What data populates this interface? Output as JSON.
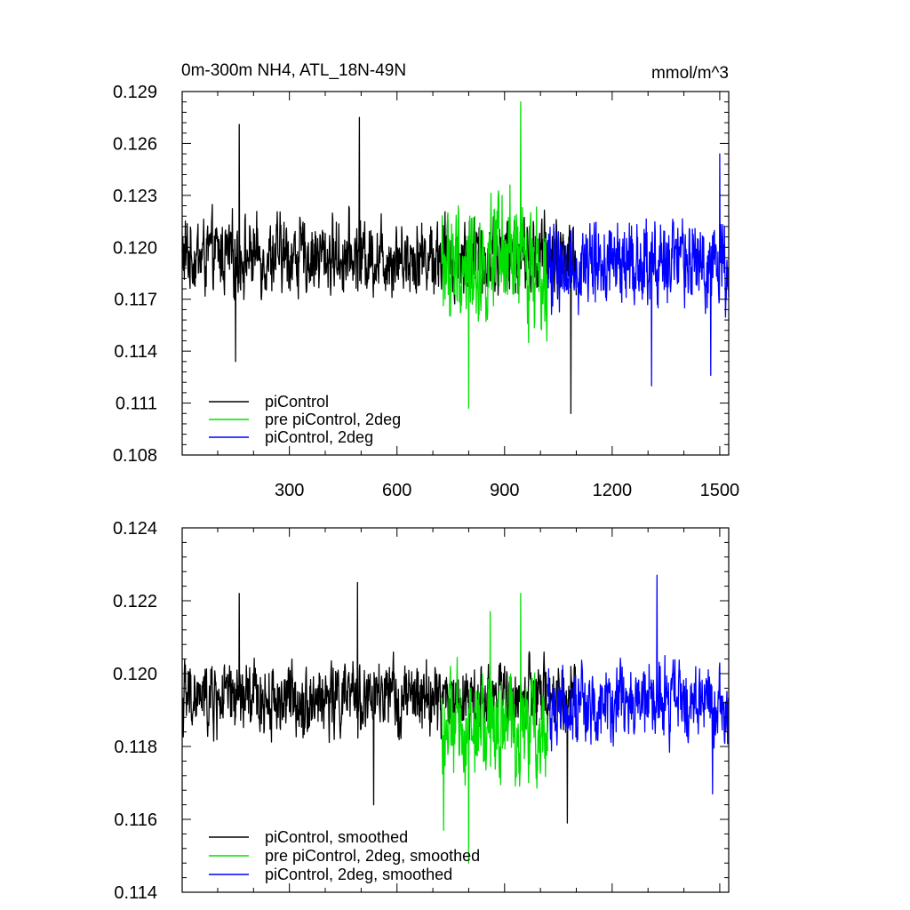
{
  "chart_data": [
    {
      "type": "line",
      "title": "0m-300m NH4, ATL_18N-49N",
      "units": "mmol/m^3",
      "xlim": [
        1,
        1525
      ],
      "ylim": [
        0.108,
        0.129
      ],
      "xticks": [
        300,
        600,
        900,
        1200,
        1500
      ],
      "xtick_labels": [
        "300",
        "600",
        "900",
        "1200",
        "1500"
      ],
      "yticks": [
        0.108,
        0.111,
        0.114,
        0.117,
        0.12,
        0.123,
        0.126,
        0.129
      ],
      "ytick_labels": [
        "0.108",
        "0.111",
        "0.114",
        "0.117",
        "0.120",
        "0.123",
        "0.126",
        "0.129"
      ],
      "grid": false,
      "legend_position": "bottom-left",
      "series": [
        {
          "name": "piControl",
          "color": "#000000",
          "x_range": [
            1,
            1100
          ],
          "mean": 0.1195,
          "amplitude": 0.0022,
          "noise": 0.0015,
          "peaks": [
            [
              150,
              0.1134
            ],
            [
              160,
              0.1271
            ],
            [
              495,
              0.1275
            ],
            [
              1085,
              0.1104
            ]
          ]
        },
        {
          "name": "pre piControl, 2deg",
          "color": "#00e000",
          "x_range": [
            725,
            1020
          ],
          "mean": 0.119,
          "amplitude": 0.0035,
          "noise": 0.0022,
          "peaks": [
            [
              800,
              0.1107
            ],
            [
              945,
              0.1284
            ],
            [
              915,
              0.1236
            ]
          ]
        },
        {
          "name": "piControl, 2deg",
          "color": "#0000ff",
          "x_range": [
            1020,
            1525
          ],
          "mean": 0.119,
          "amplitude": 0.0025,
          "noise": 0.0018,
          "peaks": [
            [
              1310,
              0.112
            ],
            [
              1475,
              0.1126
            ],
            [
              1500,
              0.1254
            ]
          ]
        }
      ]
    },
    {
      "type": "line",
      "xlim": [
        1,
        1525
      ],
      "ylim": [
        0.114,
        0.124
      ],
      "xticks": [
        300,
        600,
        900,
        1200,
        1500
      ],
      "yticks": [
        0.114,
        0.116,
        0.118,
        0.12,
        0.122,
        0.124
      ],
      "ytick_labels": [
        "0.114",
        "0.116",
        "0.118",
        "0.120",
        "0.122",
        "0.124"
      ],
      "grid": false,
      "legend_position": "bottom-left",
      "series": [
        {
          "name": "piControl, smoothed",
          "color": "#000000",
          "x_range": [
            1,
            1100
          ],
          "mean": 0.1193,
          "amplitude": 0.001,
          "noise": 0.0007,
          "peaks": [
            [
              160,
              0.1222
            ],
            [
              490,
              0.1225
            ],
            [
              1075,
              0.1159
            ],
            [
              535,
              0.1164
            ]
          ]
        },
        {
          "name": "pre piControl, 2deg, smoothed",
          "color": "#00e000",
          "x_range": [
            725,
            1020
          ],
          "mean": 0.1185,
          "amplitude": 0.0015,
          "noise": 0.0009,
          "peaks": [
            [
              730,
              0.1157
            ],
            [
              800,
              0.1148
            ],
            [
              945,
              0.1222
            ],
            [
              860,
              0.1217
            ]
          ]
        },
        {
          "name": "piControl, 2deg, smoothed",
          "color": "#0000ff",
          "x_range": [
            1020,
            1525
          ],
          "mean": 0.1192,
          "amplitude": 0.0011,
          "noise": 0.0007,
          "peaks": [
            [
              1325,
              0.1227
            ],
            [
              1480,
              0.1167
            ]
          ]
        }
      ]
    }
  ]
}
